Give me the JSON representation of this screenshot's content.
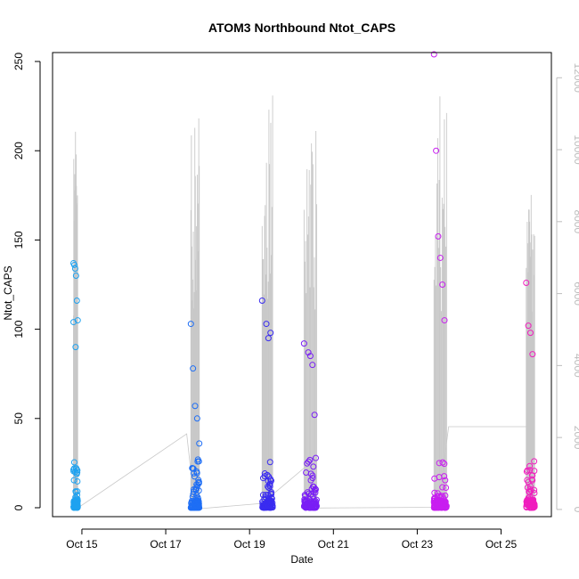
{
  "chart_data": {
    "type": "scatter",
    "title": "ATOM3 Northbound Ntot_CAPS",
    "xlabel": "Date",
    "ylabel": "Ntot_CAPS",
    "x_unit": "day of October",
    "xlim": [
      14.3,
      26.2
    ],
    "ylim": [
      -5,
      255
    ],
    "y2lim": [
      -200,
      12700
    ],
    "x_ticks": [
      15,
      17,
      19,
      21,
      23,
      25
    ],
    "x_tick_labels": [
      "Oct 15",
      "Oct 17",
      "Oct 19",
      "Oct 21",
      "Oct 23",
      "Oct 25"
    ],
    "y_ticks": [
      0,
      50,
      100,
      150,
      200,
      250
    ],
    "y_tick_labels": [
      "0",
      "50",
      "100",
      "150",
      "200",
      "250"
    ],
    "y2_ticks": [
      0,
      2000,
      4000,
      6000,
      8000,
      10000,
      12000
    ],
    "y2_tick_labels": [
      "0",
      "2000",
      "4000",
      "6000",
      "8000",
      "10000",
      "12000"
    ],
    "colors": {
      "gradient": [
        "#1fa2f0",
        "#1e6ef5",
        "#3a2cf0",
        "#7a1ef5",
        "#c81ef0",
        "#f01ebe"
      ],
      "secondary_line": "#c8c8c8",
      "frame": "#000000"
    },
    "series": [
      {
        "x": [
          14.8,
          14.82,
          14.84,
          14.86,
          14.88,
          14.9,
          14.8,
          14.85,
          14.9
        ],
        "y": [
          137,
          136,
          134,
          130,
          116,
          105,
          104,
          90,
          1
        ],
        "y2_peaks": [
          9800,
          10100,
          11800
        ],
        "color": "#1fa2f0"
      },
      {
        "x": [
          17.6,
          17.65,
          17.7,
          17.75,
          17.8,
          17.7
        ],
        "y": [
          103,
          78,
          57,
          50,
          36,
          1
        ],
        "y2_peaks": [
          9500,
          10900,
          12900
        ],
        "color": "#1e6ef5"
      },
      {
        "x": [
          19.3,
          19.4,
          19.5,
          19.45,
          19.55
        ],
        "y": [
          116,
          103,
          98,
          95,
          1
        ],
        "y2_peaks": [
          10200,
          11500,
          12000
        ],
        "color": "#3a2cf0"
      },
      {
        "x": [
          20.3,
          20.4,
          20.45,
          20.5,
          20.55,
          20.6
        ],
        "y": [
          92,
          87,
          85,
          80,
          52,
          1
        ],
        "y2_peaks": [
          9800,
          10600,
          11100
        ],
        "color": "#7a1ef5"
      },
      {
        "x": [
          23.4,
          23.45,
          23.5,
          23.55,
          23.6,
          23.65,
          23.7
        ],
        "y": [
          254,
          200,
          152,
          140,
          125,
          105,
          1
        ],
        "y2_peaks": [
          8500,
          10000,
          12300
        ],
        "color": "#c81ef0"
      },
      {
        "x": [
          25.6,
          25.65,
          25.7,
          25.75,
          25.8
        ],
        "y": [
          126,
          102,
          98,
          86,
          1
        ],
        "y2_peaks": [
          10000,
          9200,
          8700
        ],
        "color": "#f01ebe"
      }
    ]
  }
}
